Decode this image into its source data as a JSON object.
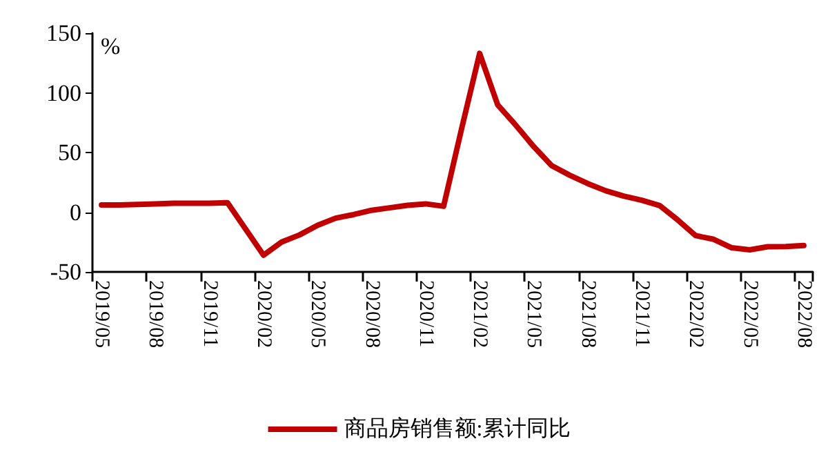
{
  "chart_data": {
    "type": "line",
    "ylabel": "%",
    "categories": [
      "2019/05",
      null,
      null,
      "2019/08",
      null,
      null,
      "2019/11",
      null,
      null,
      "2020/02",
      null,
      null,
      "2020/05",
      null,
      null,
      "2020/08",
      null,
      null,
      "2020/11",
      null,
      null,
      "2021/02",
      null,
      null,
      "2021/05",
      null,
      null,
      "2021/08",
      null,
      null,
      "2021/11",
      null,
      null,
      "2022/02",
      null,
      null,
      "2022/05",
      null,
      null,
      "2022/08"
    ],
    "series": [
      {
        "name": "商品房销售额:累计同比",
        "color": "#c00000",
        "values": [
          6,
          6,
          6.5,
          7,
          7.5,
          7.5,
          7.5,
          8,
          -14,
          -36,
          -25,
          -19,
          -11,
          -5,
          -2,
          1.6,
          3.7,
          5.8,
          7,
          5,
          70,
          133,
          90,
          73,
          55,
          39,
          31,
          24,
          18,
          13.5,
          10,
          5.6,
          -6.5,
          -19.6,
          -22.7,
          -29.8,
          -31.5,
          -28.9,
          -28.8,
          -27.9
        ]
      }
    ],
    "ylim": [
      -50,
      150
    ],
    "yticks": [
      -50,
      0,
      50,
      100,
      150
    ],
    "grid": false,
    "legend": "bottom",
    "marker": "none"
  }
}
